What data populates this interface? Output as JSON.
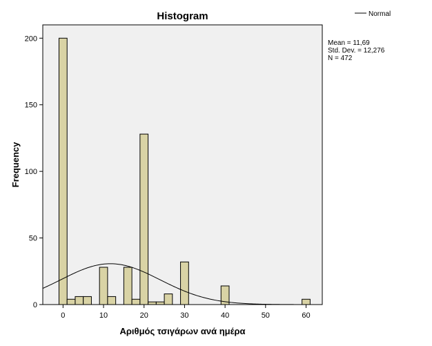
{
  "chart_data": {
    "type": "bar",
    "title": "Histogram",
    "xlabel": "Αριθμός τσιγάρων ανά ημέρα",
    "ylabel": "Frequency",
    "xlim": [
      -5,
      64
    ],
    "ylim": [
      0,
      210
    ],
    "x_ticks": [
      0,
      10,
      20,
      30,
      40,
      50,
      60
    ],
    "y_ticks": [
      0,
      50,
      100,
      150,
      200
    ],
    "bin_width": 2,
    "bins": [
      {
        "start": -1,
        "end": 1,
        "count": 200
      },
      {
        "start": 1,
        "end": 3,
        "count": 4
      },
      {
        "start": 3,
        "end": 5,
        "count": 6
      },
      {
        "start": 5,
        "end": 7,
        "count": 6
      },
      {
        "start": 9,
        "end": 11,
        "count": 28
      },
      {
        "start": 11,
        "end": 13,
        "count": 6
      },
      {
        "start": 15,
        "end": 17,
        "count": 28
      },
      {
        "start": 17,
        "end": 19,
        "count": 4
      },
      {
        "start": 19,
        "end": 21,
        "count": 128
      },
      {
        "start": 21,
        "end": 23,
        "count": 2
      },
      {
        "start": 23,
        "end": 25,
        "count": 2
      },
      {
        "start": 25,
        "end": 27,
        "count": 8
      },
      {
        "start": 29,
        "end": 31,
        "count": 32
      },
      {
        "start": 39,
        "end": 41,
        "count": 14
      },
      {
        "start": 59,
        "end": 61,
        "count": 4
      }
    ],
    "normal_curve": {
      "name": "Normal",
      "mean": 11.69,
      "std_dev": 12.276,
      "n": 472
    },
    "stats_lines": [
      "Mean = 11,69",
      "Std. Dev. = 12,276",
      "N = 472"
    ],
    "legend_position": "top-right",
    "grid": false,
    "colors": {
      "plot_background": "#f0f0f0",
      "bar_fill": "#d9d3a5",
      "bar_stroke": "#000000",
      "curve": "#000000",
      "axis": "#000000"
    }
  }
}
